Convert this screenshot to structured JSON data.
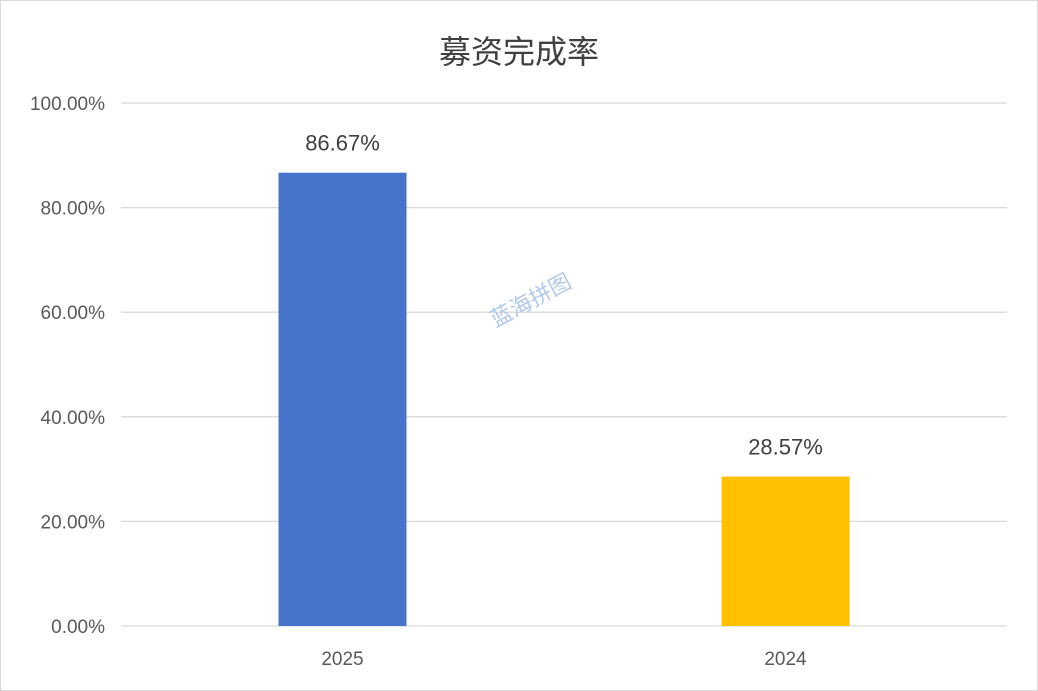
{
  "chart_data": {
    "type": "bar",
    "title": "募资完成率",
    "categories": [
      "2025",
      "2024"
    ],
    "values": [
      0.8667,
      0.2857
    ],
    "data_labels": [
      "86.67%",
      "28.57%"
    ],
    "bar_colors": [
      "#4674cc",
      "#ffc000"
    ],
    "ylim": [
      0,
      1
    ],
    "yticks": [
      0,
      0.2,
      0.4,
      0.6,
      0.8,
      1.0
    ],
    "ytick_labels": [
      "0.00%",
      "20.00%",
      "40.00%",
      "60.00%",
      "80.00%",
      "100.00%"
    ],
    "grid": true,
    "legend": "none"
  },
  "watermark": "蓝海拼图"
}
